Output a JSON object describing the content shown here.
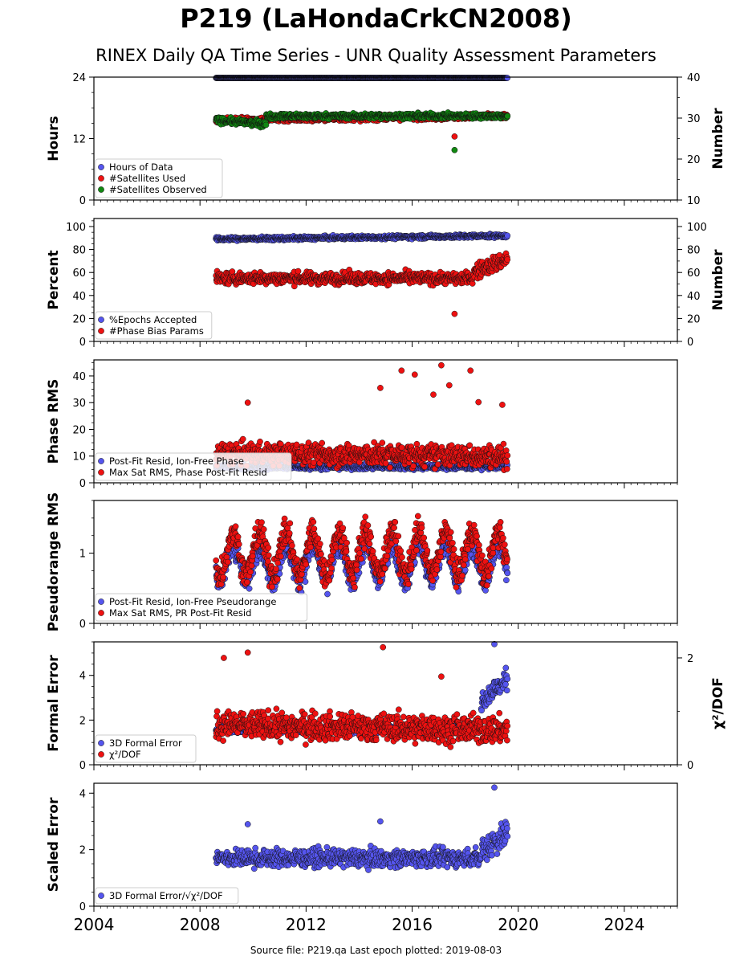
{
  "title": "P219 (LaHondaCrkCN2008)",
  "subtitle": "RINEX Daily QA Time Series - UNR Quality Assessment Parameters",
  "footer": "Source file: P219.qa Last epoch plotted: 2019-08-03",
  "colors": {
    "blue": "#5555ee",
    "red": "#ee1111",
    "green": "#118811",
    "navy": "#0a0a40"
  },
  "chart_data": [
    {
      "type": "scatter",
      "ylabel": "Hours",
      "y2label": "Number",
      "xlim": [
        2004,
        2026
      ],
      "ylim": [
        0,
        24
      ],
      "y2lim": [
        10,
        40
      ],
      "yticks": [
        "0",
        "12",
        "24"
      ],
      "y2ticks": [
        "10",
        "20",
        "30",
        "40"
      ],
      "series": [
        {
          "name": "Hours of Data",
          "color": "blue",
          "axis": "y",
          "segments": [
            [
              2008.6,
              2019.6,
              24,
              24,
              0.05,
              0
            ]
          ]
        },
        {
          "name": "#Satellites Used",
          "color": "red",
          "axis": "y2",
          "segments": [
            [
              2008.6,
              2019.6,
              29.5,
              30.5,
              0.6,
              0
            ]
          ],
          "outliers": [
            [
              2009.6,
              30
            ],
            [
              2017.6,
              25.5
            ]
          ]
        },
        {
          "name": "#Satellites Observed",
          "color": "green",
          "axis": "y2",
          "segments": [
            [
              2008.6,
              2010.5,
              29.5,
              28.5,
              0.7,
              0
            ],
            [
              2010.5,
              2019.6,
              30.5,
              30.5,
              0.6,
              0
            ]
          ],
          "outliers": [
            [
              2017.6,
              22.2
            ]
          ]
        }
      ],
      "legend_location": "lower-left"
    },
    {
      "type": "scatter",
      "ylabel": "Percent",
      "y2label": "Number",
      "xlim": [
        2004,
        2026
      ],
      "ylim": [
        0,
        107
      ],
      "y2lim": [
        0,
        107
      ],
      "yticks": [
        "0",
        "20",
        "40",
        "60",
        "80",
        "100"
      ],
      "y2ticks": [
        "0",
        "20",
        "40",
        "60",
        "80",
        "100"
      ],
      "series": [
        {
          "name": "%Epochs Accepted",
          "color": "blue",
          "axis": "y",
          "segments": [
            [
              2008.6,
              2019.6,
              89,
              92,
              1.5,
              0
            ]
          ]
        },
        {
          "name": "#Phase Bias Params",
          "color": "red",
          "axis": "y2",
          "segments": [
            [
              2008.6,
              2018.3,
              55,
              55,
              5,
              0
            ],
            [
              2018.3,
              2019.6,
              60,
              72,
              7,
              0
            ]
          ],
          "outliers": [
            [
              2017.6,
              24
            ]
          ]
        }
      ],
      "legend_location": "lower-left"
    },
    {
      "type": "scatter",
      "ylabel": "Phase RMS",
      "xlim": [
        2004,
        2026
      ],
      "ylim": [
        0,
        46
      ],
      "yticks": [
        "0",
        "10",
        "20",
        "30",
        "40"
      ],
      "series": [
        {
          "name": "Post-Fit Resid, Ion-Free Phase",
          "color": "blue",
          "axis": "y",
          "segments": [
            [
              2008.6,
              2019.6,
              6,
              6,
              1,
              0
            ]
          ]
        },
        {
          "name": "Max Sat RMS, Phase Post-Fit Resid",
          "color": "red",
          "axis": "y",
          "segments": [
            [
              2008.6,
              2019.6,
              11,
              10,
              4,
              0
            ]
          ],
          "outliers": [
            [
              2009.8,
              30
            ],
            [
              2014.8,
              35.5
            ],
            [
              2015.6,
              42
            ],
            [
              2016.1,
              40.5
            ],
            [
              2016.8,
              33
            ],
            [
              2017.1,
              44
            ],
            [
              2017.4,
              36.5
            ],
            [
              2018.2,
              42
            ],
            [
              2018.5,
              30.2
            ],
            [
              2019.4,
              29.2
            ]
          ]
        }
      ],
      "legend_location": "lower-left"
    },
    {
      "type": "scatter",
      "ylabel": "Pseudorange RMS",
      "xlim": [
        2004,
        2026
      ],
      "ylim": [
        0,
        1.75
      ],
      "yticks": [
        "0",
        "1"
      ],
      "series": [
        {
          "name": "Post-Fit Resid, Ion-Free Pseudorange",
          "color": "blue",
          "axis": "y",
          "segments": [
            [
              2008.6,
              2019.6,
              0.85,
              0.85,
              0.15,
              0.25
            ]
          ]
        },
        {
          "name": "Max Sat RMS, PR Post-Fit Resid",
          "color": "red",
          "axis": "y",
          "segments": [
            [
              2008.6,
              2019.6,
              1.0,
              1.0,
              0.2,
              0.3
            ]
          ]
        }
      ],
      "legend_location": "lower-left"
    },
    {
      "type": "scatter",
      "ylabel": "Formal Error",
      "y2label": "χ²/DOF",
      "xlim": [
        2004,
        2026
      ],
      "ylim": [
        0,
        5.5
      ],
      "y2lim": [
        0,
        2.3
      ],
      "yticks": [
        "0",
        "2",
        "4"
      ],
      "y2ticks": [
        "0",
        "2"
      ],
      "series": [
        {
          "name": "3D Formal Error",
          "color": "blue",
          "axis": "y",
          "segments": [
            [
              2008.6,
              2018.6,
              1.6,
              1.6,
              0.2,
              0
            ],
            [
              2018.6,
              2019.6,
              2.9,
              3.8,
              0.5,
              0
            ]
          ],
          "outliers": [
            [
              2019.1,
              5.4
            ]
          ]
        },
        {
          "name": "χ²/DOF",
          "color": "red",
          "axis": "y2",
          "segments": [
            [
              2008.6,
              2019.6,
              0.75,
              0.65,
              0.25,
              0
            ]
          ],
          "outliers": [
            [
              2008.9,
              2.0
            ],
            [
              2009.8,
              2.1
            ],
            [
              2014.9,
              2.2
            ],
            [
              2017.1,
              1.65
            ]
          ]
        }
      ],
      "legend_location": "lower-left"
    },
    {
      "type": "scatter",
      "ylabel": "Scaled Error",
      "xlim": [
        2004,
        2026
      ],
      "ylim": [
        0,
        4.35
      ],
      "yticks": [
        "0",
        "2",
        "4"
      ],
      "xticks": [
        "2004",
        "2008",
        "2012",
        "2016",
        "2020",
        "2024"
      ],
      "series": [
        {
          "name": "3D Formal Error/√χ²/DOF",
          "color": "blue",
          "axis": "y",
          "segments": [
            [
              2008.6,
              2018.6,
              1.7,
              1.7,
              0.3,
              0
            ],
            [
              2018.6,
              2019.6,
              2.0,
              2.6,
              0.5,
              0
            ]
          ],
          "outliers": [
            [
              2019.1,
              4.2
            ],
            [
              2009.8,
              2.9
            ],
            [
              2014.8,
              3.0
            ]
          ]
        }
      ],
      "legend_location": "lower-left"
    }
  ]
}
